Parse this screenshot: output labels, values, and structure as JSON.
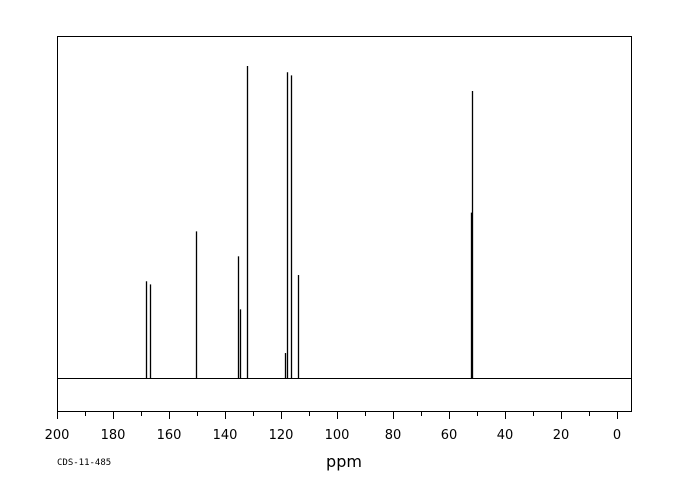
{
  "chart_data": {
    "type": "line",
    "title": "",
    "xlabel": "ppm",
    "ylabel": "",
    "x_reversed": true,
    "xlim": [
      200,
      -5
    ],
    "ylim": [
      0,
      100
    ],
    "x_ticks": [
      200,
      180,
      160,
      140,
      120,
      100,
      80,
      60,
      40,
      20,
      0
    ],
    "grid": false,
    "legend": "none",
    "line_color": "#000000",
    "baseline": 0,
    "peaks": [
      {
        "x": 168.3,
        "y": 31
      },
      {
        "x": 166.9,
        "y": 30
      },
      {
        "x": 150.4,
        "y": 47
      },
      {
        "x": 135.4,
        "y": 39
      },
      {
        "x": 134.8,
        "y": 22
      },
      {
        "x": 132.0,
        "y": 100
      },
      {
        "x": 118.4,
        "y": 8
      },
      {
        "x": 118.0,
        "y": 98
      },
      {
        "x": 116.3,
        "y": 97
      },
      {
        "x": 113.9,
        "y": 33
      },
      {
        "x": 52.3,
        "y": 53
      },
      {
        "x": 51.9,
        "y": 92
      }
    ]
  },
  "footer": {
    "code": "CDS-11-485"
  }
}
